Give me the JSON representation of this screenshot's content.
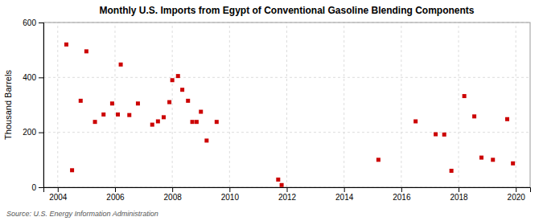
{
  "chart_data": {
    "type": "scatter",
    "title": "Monthly U.S. Imports from Egypt of Conventional Gasoline Blending Components",
    "y_label": "Thousand Barrels",
    "annotations": [
      "Source: U.S. Energy Information Administration"
    ],
    "color": "#cc0000",
    "marker": "square",
    "grid": true,
    "xlim": [
      2003.5,
      2020.5
    ],
    "ylim": [
      0,
      600
    ],
    "xticks": [
      2004,
      2006,
      2008,
      2010,
      2012,
      2014,
      2016,
      2018,
      2020
    ],
    "yticks": [
      0,
      200,
      400,
      600
    ],
    "x": [
      2004.3,
      2004.5,
      2004.8,
      2005.0,
      2005.3,
      2005.6,
      2005.9,
      2006.1,
      2006.2,
      2006.5,
      2006.8,
      2007.3,
      2007.5,
      2007.7,
      2007.9,
      2008.0,
      2008.2,
      2008.35,
      2008.55,
      2008.7,
      2008.85,
      2009.0,
      2009.2,
      2009.55,
      2011.7,
      2011.82,
      2015.2,
      2016.5,
      2017.2,
      2017.5,
      2017.75,
      2018.2,
      2018.55,
      2018.8,
      2019.2,
      2019.7,
      2019.9
    ],
    "values": [
      520,
      62,
      315,
      495,
      238,
      265,
      305,
      265,
      447,
      263,
      305,
      228,
      240,
      255,
      310,
      390,
      405,
      355,
      315,
      238,
      238,
      275,
      170,
      238,
      28,
      8,
      100,
      240,
      193,
      192,
      60,
      332,
      258,
      108,
      100,
      248,
      87
    ]
  }
}
